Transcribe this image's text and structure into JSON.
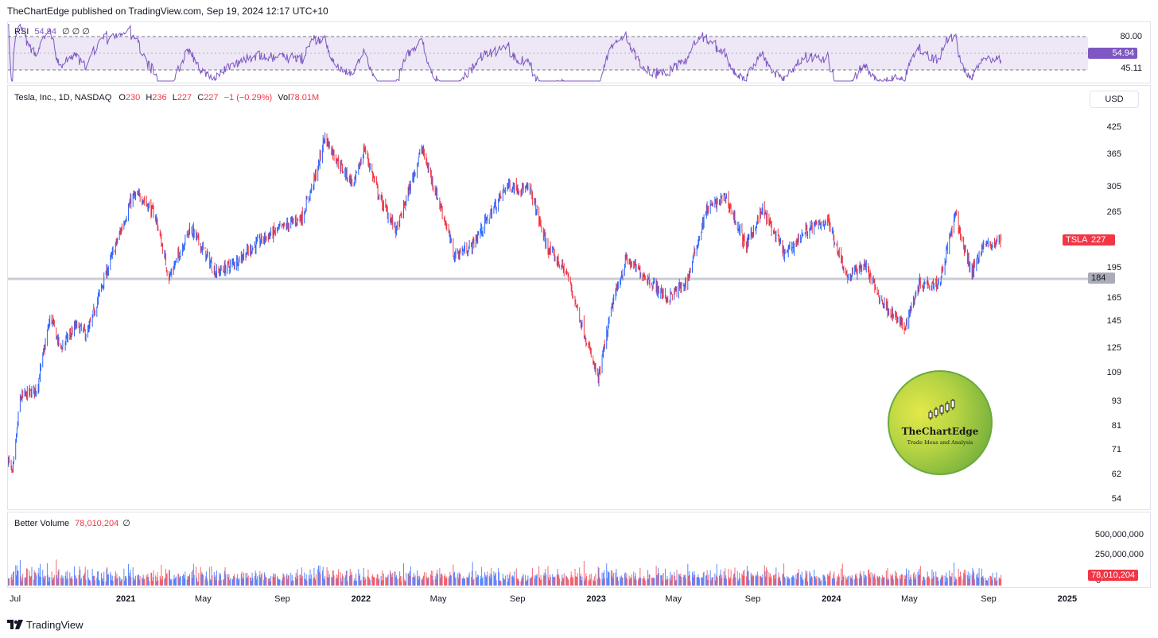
{
  "header": {
    "publisher": "TheChartEdge published on TradingView.com, Sep 19, 2024 12:17 UTC+10"
  },
  "rsi": {
    "label": "RSI",
    "value": "54.94",
    "circles": "∅ ∅ ∅",
    "ticks": [
      "80.00",
      "45.11"
    ],
    "badge": "54.94",
    "band_color": "#ede7f6",
    "line_color": "#7e57c2"
  },
  "main": {
    "symbol_line": "Tesla, Inc., 1D, NASDAQ",
    "o_label": "O",
    "o_value": "230",
    "h_label": "H",
    "h_value": "236",
    "l_label": "L",
    "l_value": "227",
    "c_label": "C",
    "c_value": "227",
    "change": "−1 (−0.29%)",
    "vol_label": "Vol",
    "vol_value": "78.01M",
    "currency": "USD",
    "price_ticks": [
      "425",
      "365",
      "305",
      "265",
      "195",
      "165",
      "145",
      "125",
      "109",
      "93",
      "81",
      "71",
      "62",
      "54"
    ],
    "ticker_badge": "TSLA",
    "price_badge": "227",
    "hline_badge": "184",
    "up_color": "#2962ff",
    "down_color": "#f23645"
  },
  "logo": {
    "name": "TheChartEdge",
    "tagline": "Trade Ideas and Analysis"
  },
  "volume": {
    "label": "Better Volume",
    "value": "78,010,204",
    "circle": "∅",
    "ticks": [
      "500,000,000",
      "250,000,000",
      "0"
    ],
    "badge": "78,010,204"
  },
  "xaxis": {
    "labels": [
      "Jul",
      "2021",
      "May",
      "Sep",
      "2022",
      "May",
      "Sep",
      "2023",
      "May",
      "Sep",
      "2024",
      "May",
      "Sep",
      "2025"
    ]
  },
  "footer": {
    "brand": "TradingView"
  },
  "chart_data": {
    "type": "candlestick",
    "symbol": "TSLA",
    "interval": "1D",
    "exchange": "NASDAQ",
    "scale": "log",
    "last": {
      "open": 230,
      "high": 236,
      "low": 227,
      "close": 227,
      "change": -1,
      "change_pct": -0.29,
      "volume": 78010204
    },
    "horizontal_line": 184,
    "ylim": [
      52,
      470
    ],
    "x_range": [
      "2020-07-01",
      "2025-02-01"
    ],
    "approx_path": [
      {
        "date": "2020-07-01",
        "price": 68
      },
      {
        "date": "2020-07-08",
        "price": 62
      },
      {
        "date": "2020-07-20",
        "price": 95
      },
      {
        "date": "2020-08-15",
        "price": 100
      },
      {
        "date": "2020-09-05",
        "price": 150
      },
      {
        "date": "2020-09-20",
        "price": 125
      },
      {
        "date": "2020-10-15",
        "price": 142
      },
      {
        "date": "2020-11-01",
        "price": 135
      },
      {
        "date": "2020-11-20",
        "price": 170
      },
      {
        "date": "2020-12-10",
        "price": 210
      },
      {
        "date": "2021-01-10",
        "price": 290
      },
      {
        "date": "2021-01-25",
        "price": 290
      },
      {
        "date": "2021-02-15",
        "price": 260
      },
      {
        "date": "2021-03-08",
        "price": 185
      },
      {
        "date": "2021-04-10",
        "price": 245
      },
      {
        "date": "2021-05-20",
        "price": 190
      },
      {
        "date": "2021-06-15",
        "price": 200
      },
      {
        "date": "2021-08-01",
        "price": 230
      },
      {
        "date": "2021-10-01",
        "price": 260
      },
      {
        "date": "2021-10-25",
        "price": 340
      },
      {
        "date": "2021-11-04",
        "price": 405
      },
      {
        "date": "2021-12-01",
        "price": 340
      },
      {
        "date": "2021-12-20",
        "price": 310
      },
      {
        "date": "2022-01-05",
        "price": 380
      },
      {
        "date": "2022-01-28",
        "price": 290
      },
      {
        "date": "2022-02-24",
        "price": 240
      },
      {
        "date": "2022-04-04",
        "price": 380
      },
      {
        "date": "2022-05-10",
        "price": 255
      },
      {
        "date": "2022-05-24",
        "price": 210
      },
      {
        "date": "2022-06-20",
        "price": 220
      },
      {
        "date": "2022-08-15",
        "price": 310
      },
      {
        "date": "2022-09-20",
        "price": 300
      },
      {
        "date": "2022-10-15",
        "price": 220
      },
      {
        "date": "2022-11-15",
        "price": 190
      },
      {
        "date": "2023-01-03",
        "price": 105
      },
      {
        "date": "2023-01-25",
        "price": 160
      },
      {
        "date": "2023-02-15",
        "price": 205
      },
      {
        "date": "2023-03-20",
        "price": 185
      },
      {
        "date": "2023-04-20",
        "price": 165
      },
      {
        "date": "2023-05-20",
        "price": 180
      },
      {
        "date": "2023-06-20",
        "price": 270
      },
      {
        "date": "2023-07-20",
        "price": 290
      },
      {
        "date": "2023-08-20",
        "price": 220
      },
      {
        "date": "2023-09-15",
        "price": 270
      },
      {
        "date": "2023-10-20",
        "price": 210
      },
      {
        "date": "2023-11-20",
        "price": 240
      },
      {
        "date": "2023-12-25",
        "price": 255
      },
      {
        "date": "2024-01-25",
        "price": 185
      },
      {
        "date": "2024-02-20",
        "price": 200
      },
      {
        "date": "2024-03-15",
        "price": 165
      },
      {
        "date": "2024-04-22",
        "price": 140
      },
      {
        "date": "2024-05-15",
        "price": 180
      },
      {
        "date": "2024-06-15",
        "price": 180
      },
      {
        "date": "2024-07-10",
        "price": 262
      },
      {
        "date": "2024-07-25",
        "price": 215
      },
      {
        "date": "2024-08-05",
        "price": 190
      },
      {
        "date": "2024-08-20",
        "price": 220
      },
      {
        "date": "2024-09-19",
        "price": 227
      }
    ],
    "volume_scale": [
      0,
      500000000
    ]
  }
}
